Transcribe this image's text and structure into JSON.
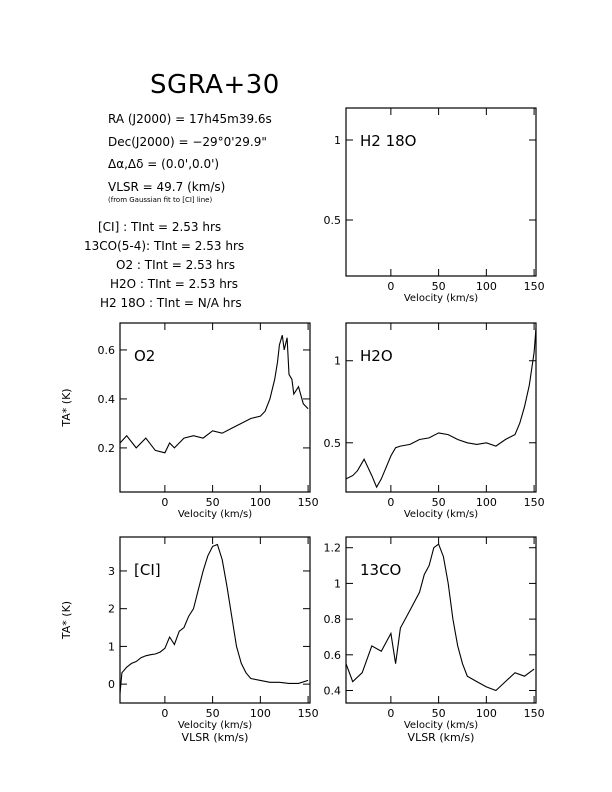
{
  "header": {
    "title": "SGRA+30",
    "ra": "RA (J2000) =  17h45m39.6s",
    "dec": "Dec(J2000) = −29°0'29.9\"",
    "offset": "Δα,Δδ = (0.0',0.0')",
    "vlsr": "VLSR = 49.7 (km/s)",
    "vlsr_note": "(from Gaussian fit to [CI] line)",
    "integrations": [
      {
        "line": "[CI] :",
        "tint": "TInt = 2.53 hrs"
      },
      {
        "line": "13CO(5-4):",
        "tint": "TInt = 2.53 hrs"
      },
      {
        "line": "O2 :",
        "tint": "TInt = 2.53 hrs"
      },
      {
        "line": "H2O :",
        "tint": "TInt = 2.53 hrs"
      },
      {
        "line": "H2 18O :",
        "tint": "TInt = N/A hrs"
      }
    ]
  },
  "chart_data": [
    {
      "type": "line",
      "label": "H2 18O",
      "xlabel": "Velocity (km/s)",
      "ylabel": "",
      "xlim": [
        -47,
        152
      ],
      "ylim": [
        0.15,
        1.2
      ],
      "xticks": [
        0,
        50,
        100,
        150
      ],
      "yticks": [
        0.5,
        1
      ],
      "x": [],
      "y": []
    },
    {
      "type": "line",
      "label": "O2",
      "xlabel": "Velocity (km/s)",
      "ylabel": "TA* (K)",
      "xlim": [
        -47,
        152
      ],
      "ylim": [
        0.02,
        0.71
      ],
      "xticks": [
        0,
        50,
        100,
        150
      ],
      "yticks": [
        0.2,
        0.4,
        0.6
      ],
      "x": [
        -47,
        -40,
        -30,
        -20,
        -10,
        0,
        5,
        10,
        20,
        30,
        40,
        50,
        60,
        70,
        80,
        90,
        100,
        105,
        110,
        115,
        118,
        120,
        123,
        125,
        128,
        130,
        133,
        135,
        140,
        145,
        150
      ],
      "y": [
        0.22,
        0.25,
        0.2,
        0.24,
        0.19,
        0.18,
        0.22,
        0.2,
        0.24,
        0.25,
        0.24,
        0.27,
        0.26,
        0.28,
        0.3,
        0.32,
        0.33,
        0.35,
        0.4,
        0.48,
        0.55,
        0.62,
        0.66,
        0.6,
        0.65,
        0.5,
        0.48,
        0.42,
        0.45,
        0.38,
        0.36
      ]
    },
    {
      "type": "line",
      "label": "H2O",
      "xlabel": "Velocity (km/s)",
      "ylabel": "",
      "xlim": [
        -47,
        152
      ],
      "ylim": [
        0.2,
        1.23
      ],
      "xticks": [
        0,
        50,
        100,
        150
      ],
      "yticks": [
        0.5,
        1
      ],
      "x": [
        -47,
        -40,
        -35,
        -28,
        -20,
        -15,
        -10,
        -5,
        0,
        5,
        10,
        20,
        30,
        40,
        50,
        60,
        70,
        80,
        90,
        100,
        110,
        120,
        130,
        135,
        140,
        145,
        150,
        152
      ],
      "y": [
        0.28,
        0.3,
        0.33,
        0.4,
        0.3,
        0.23,
        0.28,
        0.35,
        0.42,
        0.47,
        0.48,
        0.49,
        0.52,
        0.53,
        0.56,
        0.55,
        0.52,
        0.5,
        0.49,
        0.5,
        0.48,
        0.52,
        0.55,
        0.62,
        0.72,
        0.85,
        1.05,
        1.2
      ]
    },
    {
      "type": "line",
      "label": "[CI]",
      "xlabel": "Velocity (km/s)",
      "ylabel": "TA* (K)",
      "xlabel2": "VLSR (km/s)",
      "xlim": [
        -47,
        152
      ],
      "ylim": [
        -0.5,
        3.9
      ],
      "xticks": [
        0,
        50,
        100,
        150
      ],
      "yticks": [
        0,
        1,
        2,
        3
      ],
      "x": [
        -47,
        -45,
        -40,
        -35,
        -30,
        -25,
        -20,
        -15,
        -10,
        -5,
        0,
        5,
        10,
        15,
        20,
        25,
        30,
        35,
        40,
        45,
        50,
        55,
        60,
        65,
        70,
        75,
        80,
        85,
        90,
        100,
        110,
        120,
        130,
        140,
        150
      ],
      "y": [
        -0.25,
        0.3,
        0.45,
        0.55,
        0.6,
        0.7,
        0.75,
        0.78,
        0.8,
        0.85,
        0.95,
        1.25,
        1.05,
        1.4,
        1.5,
        1.8,
        2.0,
        2.5,
        3.0,
        3.4,
        3.65,
        3.7,
        3.3,
        2.6,
        1.8,
        1.0,
        0.55,
        0.3,
        0.15,
        0.1,
        0.05,
        0.05,
        0.02,
        0.02,
        0.1
      ]
    },
    {
      "type": "line",
      "label": "13CO",
      "xlabel": "Velocity (km/s)",
      "ylabel": "",
      "xlabel2": "VLSR (km/s)",
      "xlim": [
        -47,
        152
      ],
      "ylim": [
        0.33,
        1.26
      ],
      "xticks": [
        0,
        50,
        100,
        150
      ],
      "yticks": [
        0.4,
        0.6,
        0.8,
        1,
        1.2
      ],
      "x": [
        -47,
        -40,
        -30,
        -20,
        -10,
        0,
        5,
        10,
        20,
        30,
        35,
        40,
        45,
        50,
        55,
        60,
        65,
        70,
        75,
        80,
        90,
        100,
        110,
        120,
        130,
        140,
        150
      ],
      "y": [
        0.55,
        0.45,
        0.5,
        0.65,
        0.62,
        0.72,
        0.55,
        0.75,
        0.85,
        0.95,
        1.05,
        1.1,
        1.2,
        1.22,
        1.15,
        1.0,
        0.8,
        0.65,
        0.55,
        0.48,
        0.45,
        0.42,
        0.4,
        0.45,
        0.5,
        0.48,
        0.52
      ]
    }
  ]
}
